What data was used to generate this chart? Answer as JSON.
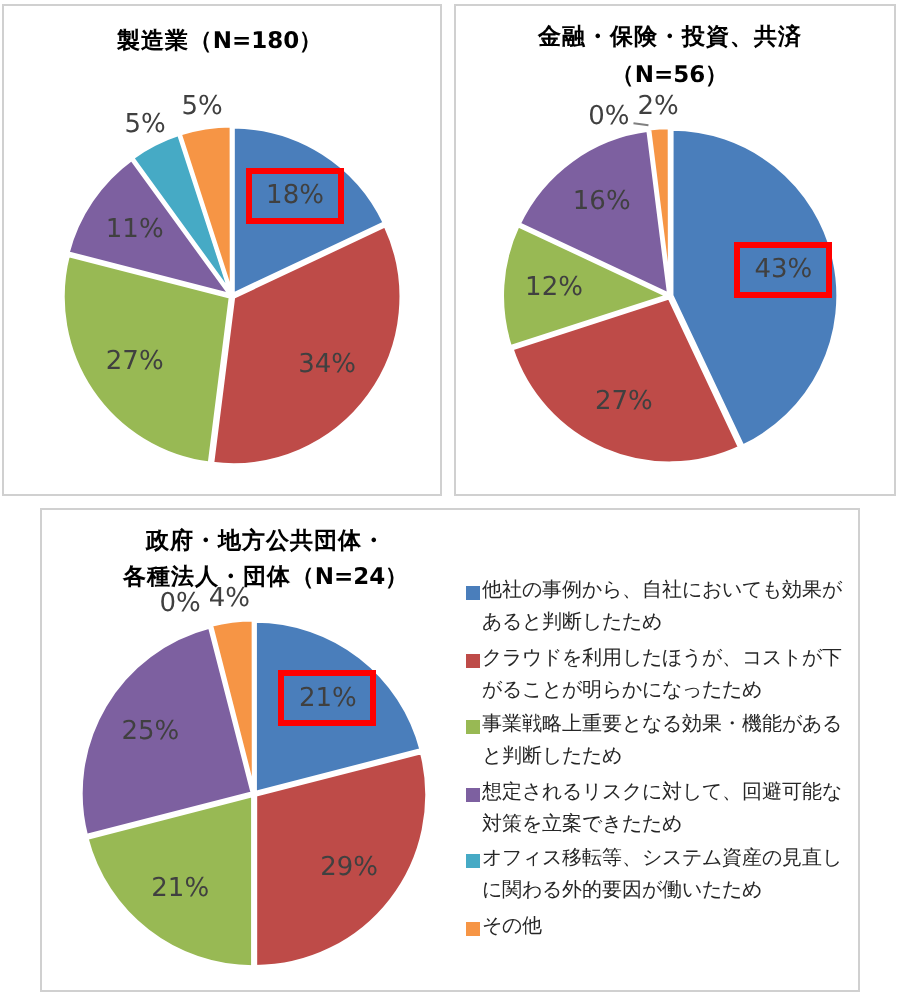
{
  "chart_data": [
    {
      "type": "pie",
      "title": "製造業（N=180）",
      "categories": [
        null,
        null,
        null,
        null,
        null,
        null
      ],
      "values": [
        18,
        34,
        27,
        11,
        5,
        5
      ],
      "colors": [
        "#4a7ebb",
        "#be4b48",
        "#98b954",
        "#7d60a0",
        "#46aac5",
        "#f69545"
      ],
      "value_labels": [
        "18%",
        "34%",
        "27%",
        "11%",
        "5%",
        "5%"
      ]
    },
    {
      "type": "pie",
      "title": "金融・保険・投資、共済（N=56）",
      "categories": [
        null,
        null,
        null,
        null,
        null,
        null
      ],
      "values": [
        43,
        27,
        12,
        16,
        0,
        2
      ],
      "colors": [
        "#4a7ebb",
        "#be4b48",
        "#98b954",
        "#7d60a0",
        "#46aac5",
        "#f69545"
      ],
      "value_labels": [
        "43%",
        "27%",
        "12%",
        "16%",
        "0%",
        "2%"
      ]
    },
    {
      "type": "pie",
      "title": "政府・地方公共団体・各種法人・団体（N=24）",
      "categories": [
        "他社の事例から、自社においても効果があると判断したため",
        "クラウドを利用したほうが、コストが下がることが明らかになったため",
        "事業戦略上重要となる効果・機能があると判断したため",
        "想定されるリスクに対して、回避可能な対策を立案できたため",
        "オフィス移転等、システム資産の見直しに関わる外的要因が働いたため",
        "その他"
      ],
      "values": [
        21,
        29,
        21,
        25,
        0,
        4
      ],
      "colors": [
        "#4a7ebb",
        "#be4b48",
        "#98b954",
        "#7d60a0",
        "#46aac5",
        "#f69545"
      ],
      "value_labels": [
        "21%",
        "29%",
        "21%",
        "25%",
        "0%",
        "4%"
      ],
      "legend": "right"
    }
  ]
}
